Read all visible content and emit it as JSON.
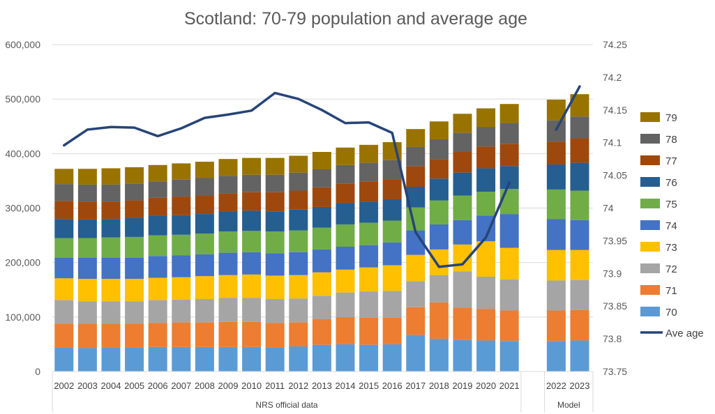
{
  "chart_data": {
    "type": "bar",
    "subtype": "stacked-bar-with-line",
    "title": "Scotland: 70-79 population and average age",
    "categories": [
      "2002",
      "2003",
      "2004",
      "2005",
      "2006",
      "2007",
      "2008",
      "2009",
      "2010",
      "2011",
      "2012",
      "2013",
      "2014",
      "2015",
      "2016",
      "2017",
      "2018",
      "2019",
      "2020",
      "2021",
      "2022",
      "2023"
    ],
    "groups": [
      {
        "label": "NRS official data",
        "categories": [
          "2002",
          "2003",
          "2004",
          "2005",
          "2006",
          "2007",
          "2008",
          "2009",
          "2010",
          "2011",
          "2012",
          "2013",
          "2014",
          "2015",
          "2016",
          "2017",
          "2018",
          "2019",
          "2020",
          "2021"
        ]
      },
      {
        "label": "Model",
        "categories": [
          "2022",
          "2023"
        ]
      }
    ],
    "ylim": [
      0,
      600000
    ],
    "yticks": [
      "0",
      "100,000",
      "200,000",
      "300,000",
      "400,000",
      "500,000",
      "600,000"
    ],
    "y2lim": [
      73.75,
      74.25
    ],
    "y2ticks": [
      "73.75",
      "73.8",
      "73.85",
      "73.9",
      "73.95",
      "74",
      "74.05",
      "74.1",
      "74.15",
      "74.2",
      "74.25"
    ],
    "series": [
      {
        "name": "70",
        "color": "#5B9BD5",
        "values": [
          44000,
          43000,
          44000,
          44000,
          45000,
          45000,
          45000,
          45000,
          45000,
          44000,
          46000,
          49000,
          50000,
          49000,
          50000,
          67000,
          60000,
          58000,
          57000,
          56000,
          56000,
          57000
        ]
      },
      {
        "name": "71",
        "color": "#ED7D31",
        "values": [
          44000,
          44000,
          43000,
          43000,
          44000,
          45000,
          45000,
          46000,
          46000,
          45000,
          44000,
          47000,
          50000,
          50000,
          49000,
          51000,
          67000,
          59000,
          58000,
          56000,
          56000,
          56000
        ]
      },
      {
        "name": "72",
        "color": "#A5A5A5",
        "values": [
          43000,
          42000,
          42000,
          42000,
          42000,
          42000,
          43000,
          44000,
          44000,
          44000,
          44000,
          43000,
          45000,
          48000,
          49000,
          48000,
          50000,
          67000,
          59000,
          57000,
          55000,
          55000
        ]
      },
      {
        "name": "73",
        "color": "#FFC000",
        "values": [
          40000,
          41000,
          41000,
          41000,
          41000,
          41000,
          42000,
          42000,
          43000,
          43000,
          43000,
          43000,
          42000,
          44000,
          47000,
          48000,
          47000,
          49000,
          65000,
          58000,
          56000,
          55000
        ]
      },
      {
        "name": "74",
        "color": "#4472C4",
        "values": [
          38000,
          39000,
          39000,
          39000,
          40000,
          40000,
          40000,
          41000,
          41000,
          41000,
          42000,
          42000,
          42000,
          41000,
          42000,
          45000,
          46000,
          45000,
          47000,
          62000,
          57000,
          55000
        ]
      },
      {
        "name": "75",
        "color": "#70AD47",
        "values": [
          36000,
          36000,
          37000,
          38000,
          38000,
          38000,
          38000,
          39000,
          39000,
          40000,
          40000,
          40000,
          41000,
          41000,
          40000,
          42000,
          44000,
          45000,
          44000,
          46000,
          54000,
          54000
        ]
      },
      {
        "name": "76",
        "color": "#255E91",
        "values": [
          35000,
          34000,
          34000,
          35000,
          36000,
          36000,
          36000,
          36000,
          37000,
          37000,
          38000,
          38000,
          39000,
          39000,
          39000,
          38000,
          40000,
          42000,
          43000,
          42000,
          46000,
          51000
        ]
      },
      {
        "name": "77",
        "color": "#9E480E",
        "values": [
          33000,
          33000,
          32000,
          32000,
          33000,
          34000,
          34000,
          34000,
          34000,
          35000,
          35000,
          36000,
          36000,
          37000,
          37000,
          38000,
          36000,
          38000,
          40000,
          41000,
          42000,
          45000
        ]
      },
      {
        "name": "78",
        "color": "#636363",
        "values": [
          31000,
          31000,
          31000,
          31000,
          30000,
          31000,
          32000,
          32000,
          32000,
          32000,
          33000,
          33000,
          34000,
          34000,
          35000,
          35000,
          36000,
          35000,
          36000,
          38000,
          39000,
          40000
        ]
      },
      {
        "name": "79",
        "color": "#997300",
        "values": [
          28000,
          29000,
          30000,
          30000,
          30000,
          30000,
          30000,
          31000,
          31000,
          31000,
          31000,
          32000,
          32000,
          33000,
          33000,
          33000,
          33000,
          35000,
          34000,
          35000,
          38000,
          41000
        ]
      }
    ],
    "line": {
      "name": "Ave age",
      "color": "#264478",
      "values": [
        74.096,
        74.12,
        74.124,
        74.123,
        74.11,
        74.122,
        74.138,
        74.143,
        74.149,
        74.176,
        74.167,
        74.15,
        74.13,
        74.131,
        74.115,
        73.963,
        73.91,
        73.914,
        73.955,
        74.039,
        74.12,
        74.186
      ]
    },
    "legend": [
      "79",
      "78",
      "77",
      "76",
      "75",
      "74",
      "73",
      "72",
      "71",
      "70",
      "Ave age"
    ],
    "legend_position": "right"
  }
}
